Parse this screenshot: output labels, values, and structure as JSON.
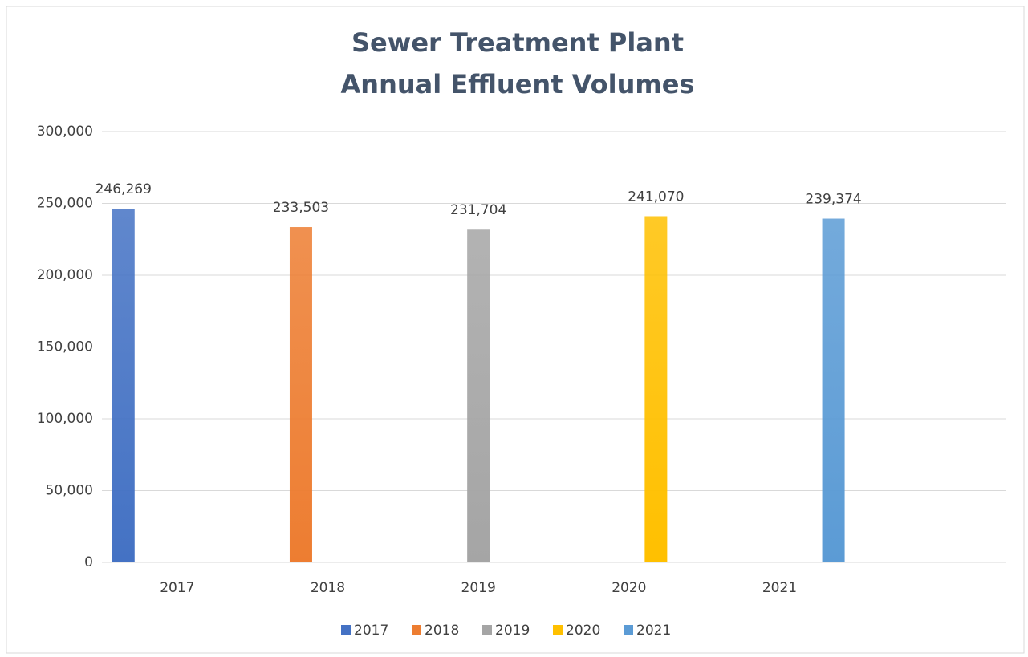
{
  "chart_data": {
    "type": "bar",
    "title": [
      "Sewer Treatment Plant",
      "Annual Effluent Volumes"
    ],
    "categories": [
      "2017",
      "2018",
      "2019",
      "2020",
      "2021",
      null
    ],
    "series": [
      {
        "name": "2017",
        "color": "#4472c4",
        "values": [
          246269,
          null,
          null,
          null,
          null,
          null
        ],
        "value_labels": [
          "246,269",
          null,
          null,
          null,
          null,
          null
        ]
      },
      {
        "name": "2018",
        "color": "#ed7d31",
        "values": [
          null,
          233503,
          null,
          null,
          null,
          null
        ],
        "value_labels": [
          null,
          "233,503",
          null,
          null,
          null,
          null
        ]
      },
      {
        "name": "2019",
        "color": "#a5a5a5",
        "values": [
          null,
          null,
          231704,
          null,
          null,
          null
        ],
        "value_labels": [
          null,
          null,
          "231,704",
          null,
          null,
          null
        ]
      },
      {
        "name": "2020",
        "color": "#ffc000",
        "values": [
          null,
          null,
          null,
          241070,
          null,
          null
        ],
        "value_labels": [
          null,
          null,
          null,
          "241,070",
          null,
          null
        ]
      },
      {
        "name": "2021",
        "color": "#5b9bd5",
        "values": [
          null,
          null,
          null,
          null,
          239374,
          null
        ],
        "value_labels": [
          null,
          null,
          null,
          null,
          "239,374",
          null
        ]
      }
    ],
    "ylim": [
      0,
      300000
    ],
    "yticks": [
      0,
      {
        "value": 50000,
        "label": "50,000"
      },
      {
        "value": 100000,
        "label": "100,000"
      },
      {
        "value": 150000,
        "label": "150,000"
      },
      {
        "value": 200000,
        "label": "200,000"
      },
      {
        "value": 250000,
        "label": "250,000"
      },
      {
        "value": 300000,
        "label": "300,000"
      }
    ],
    "grid": true,
    "legend": "bottom"
  }
}
